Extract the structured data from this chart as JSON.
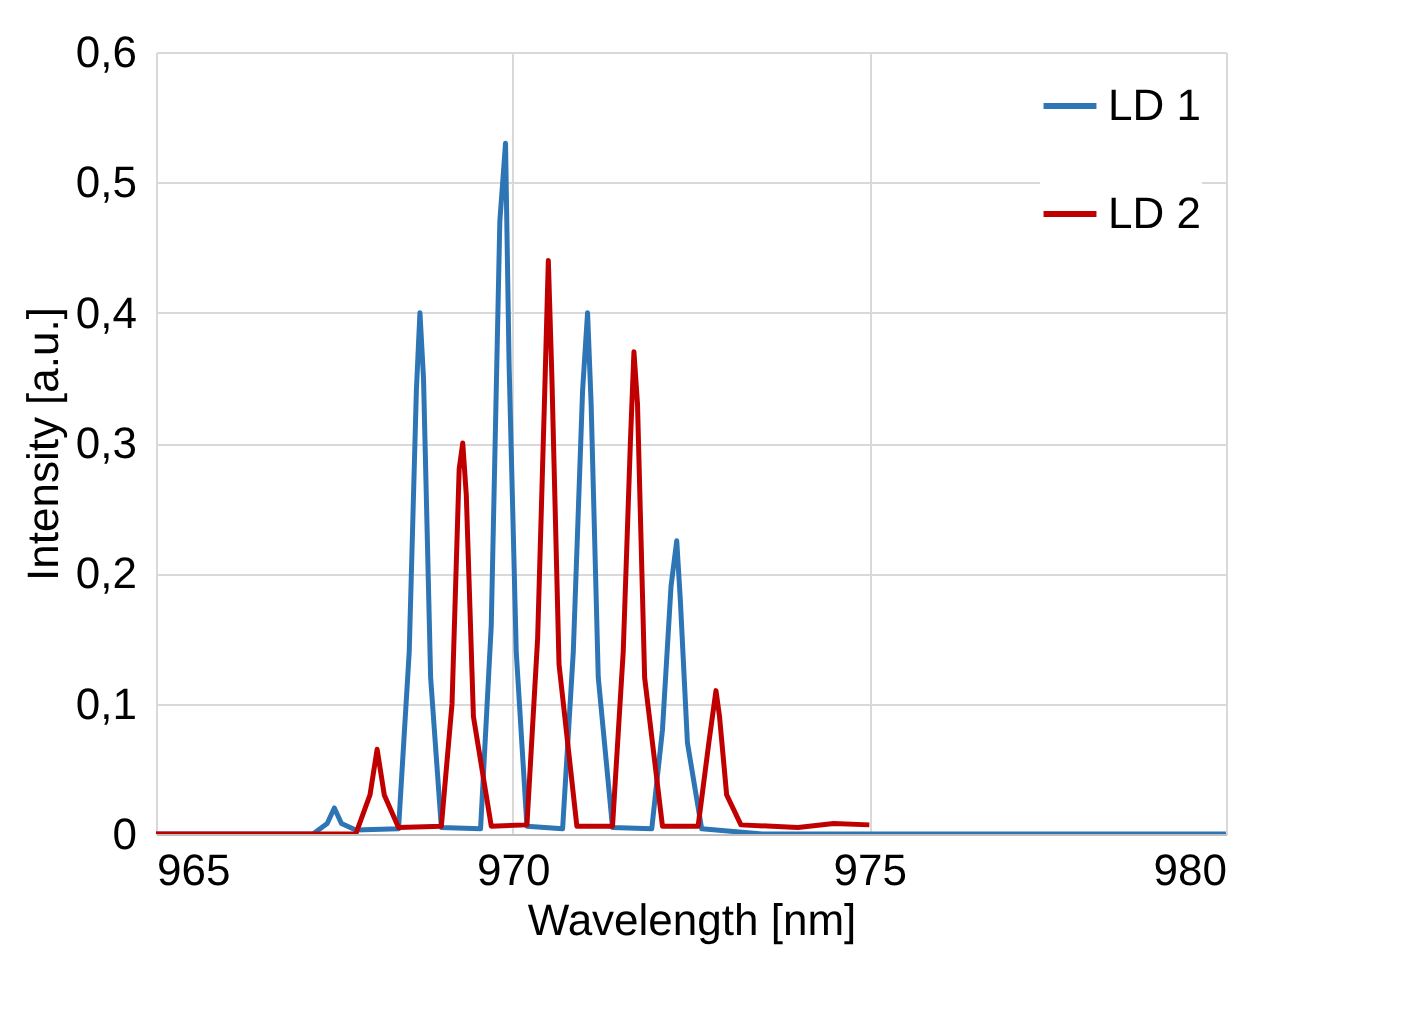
{
  "chart_data": {
    "type": "line",
    "xlabel": "Wavelength [nm]",
    "ylabel": "Intensity [a.u.]",
    "xlim": [
      965,
      980
    ],
    "xticks": [
      965,
      970,
      975,
      980
    ],
    "ylim": [
      0,
      0.6
    ],
    "yticks": [
      0,
      {
        "value": 0.1,
        "label": "0,1"
      },
      {
        "value": 0.2,
        "label": "0,2"
      },
      {
        "value": 0.3,
        "label": "0,3"
      },
      {
        "value": 0.4,
        "label": "0,4"
      },
      {
        "value": 0.5,
        "label": "0,5"
      },
      {
        "value": 0.6,
        "label": "0,6"
      }
    ],
    "grid": true,
    "legend": "top right",
    "marker": "none",
    "line_style": "solid",
    "series": [
      {
        "name": "LD 1",
        "color": "#2e75b6",
        "x": [
          965,
          967.2,
          967.4,
          967.5,
          967.6,
          967.8,
          968.4,
          968.55,
          968.65,
          968.7,
          968.75,
          968.85,
          969.0,
          969.55,
          969.7,
          969.82,
          969.9,
          969.95,
          970.05,
          970.2,
          970.7,
          970.85,
          970.98,
          971.05,
          971.1,
          971.2,
          971.4,
          971.95,
          972.1,
          972.22,
          972.3,
          972.35,
          972.45,
          972.65,
          973.5,
          980
        ],
        "values": [
          0,
          0,
          0.008,
          0.02,
          0.008,
          0.003,
          0.004,
          0.14,
          0.34,
          0.4,
          0.35,
          0.12,
          0.005,
          0.004,
          0.16,
          0.47,
          0.53,
          0.36,
          0.14,
          0.006,
          0.004,
          0.14,
          0.34,
          0.4,
          0.33,
          0.12,
          0.005,
          0.004,
          0.08,
          0.19,
          0.225,
          0.18,
          0.07,
          0.004,
          0,
          0
        ]
      },
      {
        "name": "LD 2",
        "color": "#c00000",
        "x": [
          965,
          967.8,
          968.0,
          968.1,
          968.2,
          968.4,
          969.0,
          969.15,
          969.25,
          969.3,
          969.35,
          969.45,
          969.7,
          970.2,
          970.35,
          970.45,
          970.5,
          970.55,
          970.65,
          970.9,
          971.4,
          971.55,
          971.65,
          971.7,
          971.75,
          971.85,
          972.1,
          972.6,
          972.75,
          972.85,
          972.9,
          973.0,
          973.2,
          974.0,
          974.5,
          975
        ],
        "values": [
          0,
          0,
          0.03,
          0.065,
          0.03,
          0.005,
          0.006,
          0.1,
          0.28,
          0.3,
          0.26,
          0.09,
          0.006,
          0.007,
          0.15,
          0.34,
          0.44,
          0.35,
          0.13,
          0.006,
          0.006,
          0.14,
          0.3,
          0.37,
          0.33,
          0.12,
          0.006,
          0.006,
          0.07,
          0.11,
          0.09,
          0.03,
          0.007,
          0.005,
          0.008,
          0.007
        ]
      }
    ]
  }
}
